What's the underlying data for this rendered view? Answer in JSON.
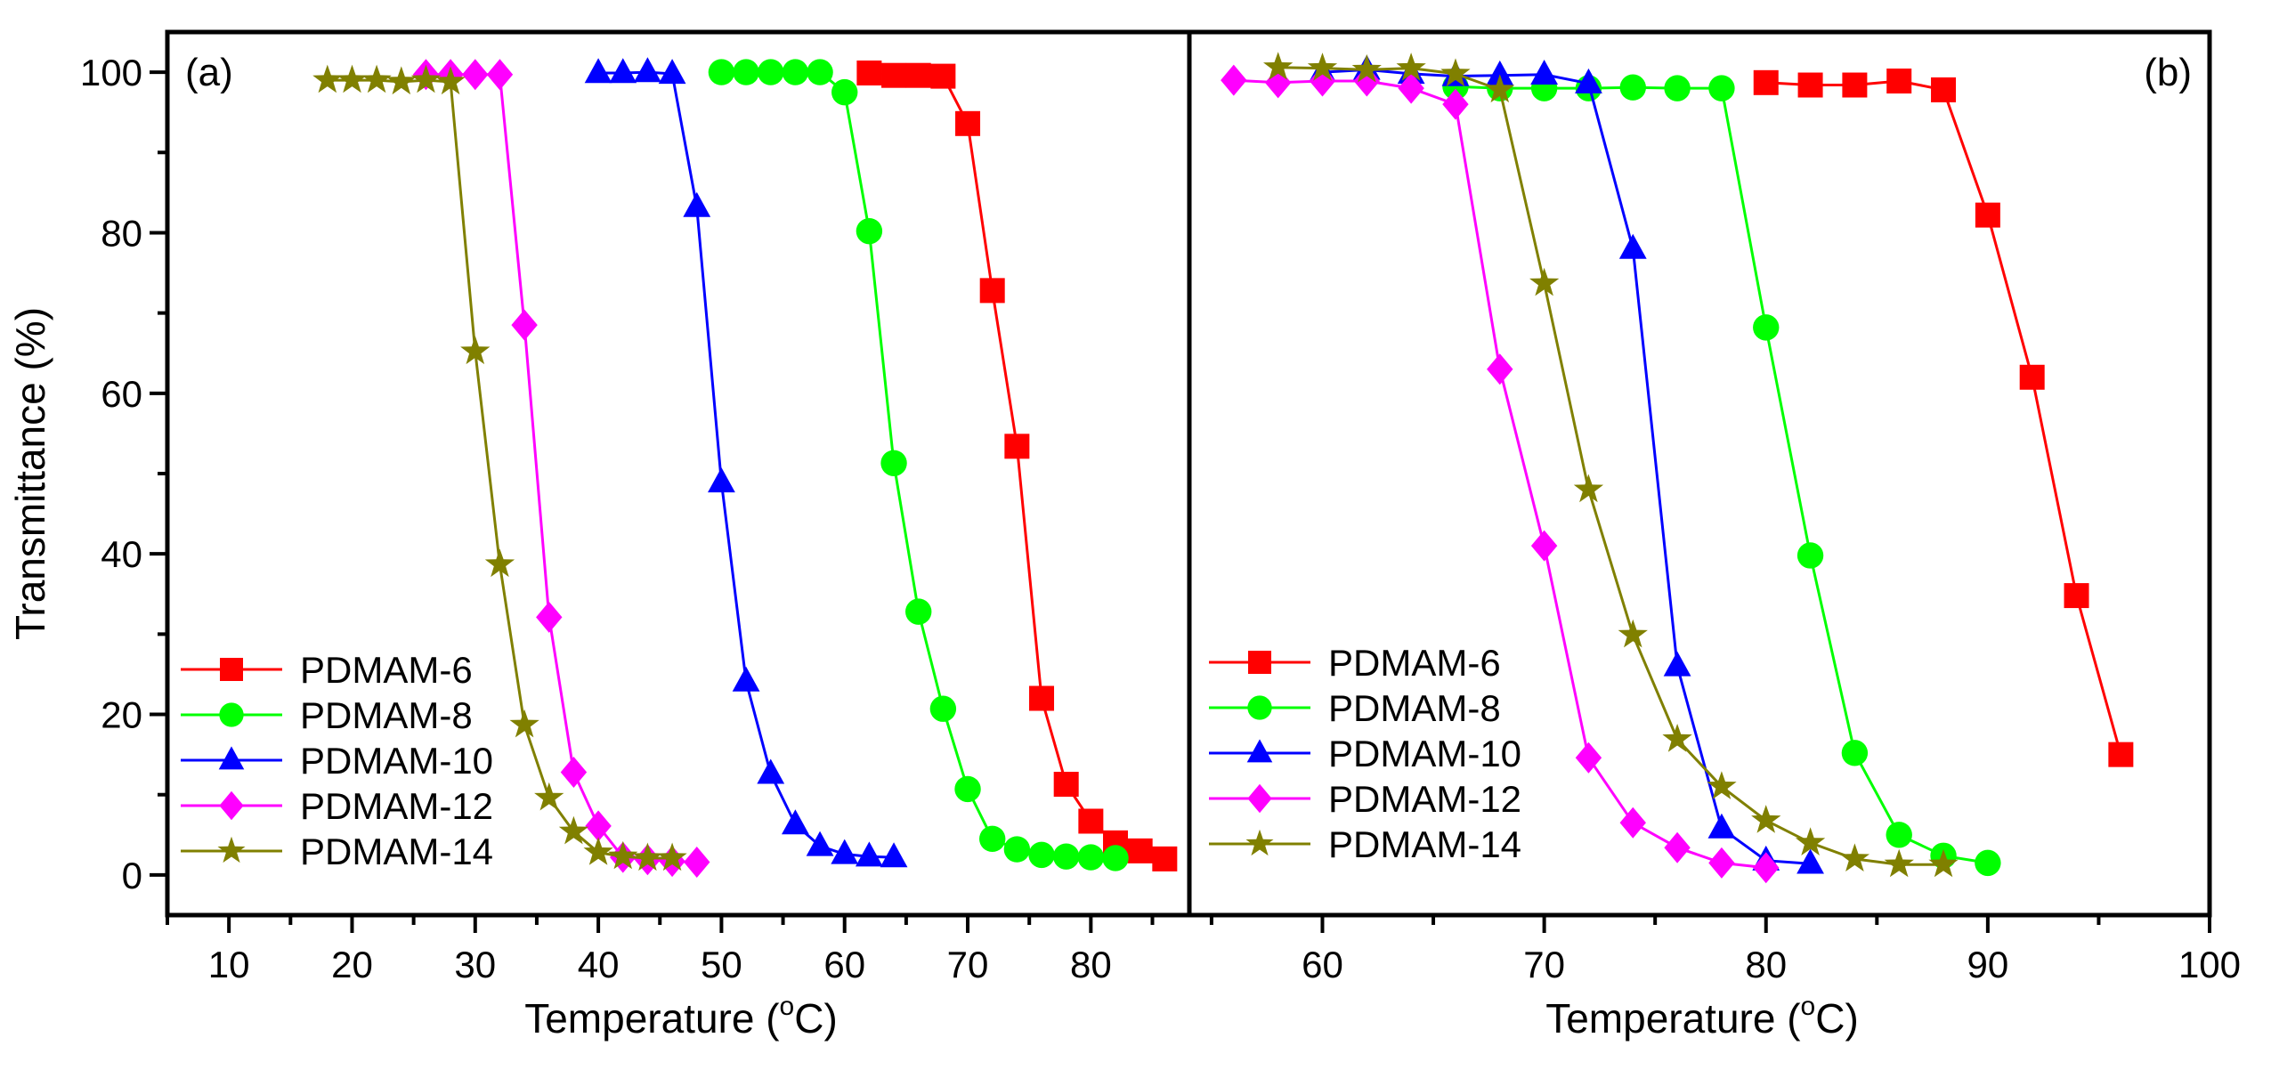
{
  "chart_data": [
    {
      "type": "line",
      "panel_label": "(a)",
      "xlabel": "Temperature (",
      "xlabel_unit_sup": "o",
      "xlabel_unit": "C)",
      "ylabel": "Transmittance (%)",
      "xlim": [
        5,
        88
      ],
      "ylim": [
        -5,
        105
      ],
      "xticks": [
        10,
        20,
        30,
        40,
        50,
        60,
        70,
        80
      ],
      "yticks": [
        0,
        20,
        40,
        60,
        80,
        100
      ],
      "grid": false,
      "legend_position": "bottom-left",
      "series": [
        {
          "name": "PDMAM-6",
          "color": "#ff0000",
          "marker": "square",
          "x": [
            62,
            64,
            66,
            68,
            70,
            72,
            74,
            76,
            78,
            80,
            82,
            84,
            86
          ],
          "y": [
            99.9,
            99.6,
            99.6,
            99.5,
            93.6,
            72.8,
            53.4,
            22,
            11.3,
            6.7,
            4,
            3,
            2
          ]
        },
        {
          "name": "PDMAM-8",
          "color": "#00ff00",
          "marker": "circle",
          "x": [
            50,
            52,
            54,
            56,
            58,
            60,
            62,
            64,
            66,
            68,
            70,
            72,
            74,
            76,
            78,
            80,
            82
          ],
          "y": [
            100,
            100,
            100,
            100,
            100,
            97.5,
            80.2,
            51.3,
            32.8,
            20.7,
            10.7,
            4.5,
            3.2,
            2.5,
            2.3,
            2.2,
            2.1
          ]
        },
        {
          "name": "PDMAM-10",
          "color": "#0000ff",
          "marker": "triangle",
          "x": [
            40,
            42,
            44,
            46,
            48,
            50,
            52,
            54,
            56,
            58,
            60,
            62,
            64
          ],
          "y": [
            99.9,
            99.9,
            100,
            99.8,
            83.2,
            48.9,
            24.1,
            12.6,
            6.3,
            3.6,
            2.6,
            2.3,
            2.2
          ]
        },
        {
          "name": "PDMAM-12",
          "color": "#ff00ff",
          "marker": "diamond",
          "x": [
            26,
            28,
            30,
            32,
            34,
            36,
            38,
            40,
            42,
            44,
            46,
            48
          ],
          "y": [
            99.7,
            99.7,
            99.7,
            99.7,
            68.5,
            32.1,
            12.8,
            6.1,
            2.2,
            1.9,
            1.7,
            1.6
          ]
        },
        {
          "name": "PDMAM-14",
          "color": "#808000",
          "marker": "star",
          "x": [
            18,
            20,
            22,
            24,
            26,
            28,
            30,
            32,
            34,
            36,
            38,
            40,
            42,
            44,
            46
          ],
          "y": [
            99,
            99,
            99,
            98.8,
            99,
            98.8,
            65.2,
            38.7,
            18.7,
            9.6,
            5.4,
            2.8,
            2.3,
            2.1,
            2.1
          ]
        }
      ]
    },
    {
      "type": "line",
      "panel_label": "(b)",
      "xlabel": "Temperature (",
      "xlabel_unit_sup": "o",
      "xlabel_unit": "C)",
      "xlim": [
        54,
        100
      ],
      "ylim": [
        -5,
        105
      ],
      "xticks": [
        60,
        70,
        80,
        90,
        100
      ],
      "grid": false,
      "legend_position": "bottom-left",
      "series": [
        {
          "name": "PDMAM-6",
          "color": "#ff0000",
          "marker": "square",
          "x": [
            80,
            82,
            84,
            86,
            88,
            90,
            92,
            94,
            96
          ],
          "y": [
            98.7,
            98.4,
            98.4,
            98.9,
            97.8,
            82.2,
            62,
            34.8,
            15
          ]
        },
        {
          "name": "PDMAM-8",
          "color": "#00ff00",
          "marker": "circle",
          "x": [
            66,
            68,
            70,
            72,
            74,
            76,
            78,
            80,
            82,
            84,
            86,
            88,
            90
          ],
          "y": [
            98.2,
            98,
            98,
            98,
            98.1,
            98,
            98,
            68.2,
            39.8,
            15.2,
            5,
            2.4,
            1.5
          ]
        },
        {
          "name": "PDMAM-10",
          "color": "#0000ff",
          "marker": "triangle",
          "x": [
            60,
            62,
            64,
            66,
            68,
            70,
            72,
            74,
            76,
            78,
            80,
            82
          ],
          "y": [
            100,
            100.3,
            99.8,
            99.5,
            99.6,
            99.7,
            98.6,
            78,
            26,
            5.8,
            1.8,
            1.4
          ]
        },
        {
          "name": "PDMAM-12",
          "color": "#ff00ff",
          "marker": "diamond",
          "x": [
            56,
            58,
            60,
            62,
            64,
            66,
            68,
            70,
            72,
            74,
            76,
            78,
            80
          ],
          "y": [
            99,
            98.7,
            98.9,
            98.9,
            98,
            96,
            63,
            41,
            14.6,
            6.5,
            3.4,
            1.5,
            0.9
          ]
        },
        {
          "name": "PDMAM-14",
          "color": "#808000",
          "marker": "star",
          "x": [
            58,
            60,
            62,
            64,
            66,
            68,
            70,
            72,
            74,
            76,
            78,
            80,
            82,
            84,
            86,
            88
          ],
          "y": [
            100.6,
            100.5,
            100.3,
            100.5,
            99.8,
            97.8,
            73.7,
            48,
            29.9,
            16.9,
            11,
            6.8,
            4,
            2,
            1.3,
            1.3
          ]
        }
      ]
    }
  ]
}
